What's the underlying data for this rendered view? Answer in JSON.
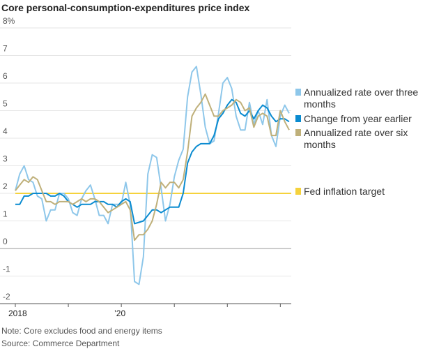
{
  "chart_data": {
    "type": "line",
    "title": "Core personal-consumption-expenditures price index",
    "categories": [
      "2018",
      null,
      null,
      null,
      null,
      null,
      null,
      null,
      null,
      null,
      null,
      null,
      null,
      null,
      null,
      null,
      null,
      null,
      null,
      null,
      null,
      null,
      null,
      null,
      "’20",
      null,
      null,
      null,
      null,
      null,
      null,
      null,
      null,
      null,
      null,
      null,
      null,
      null,
      null,
      null,
      null,
      null,
      null,
      null,
      null,
      null,
      null,
      null,
      null,
      null,
      null,
      null,
      null,
      null,
      null,
      null,
      null,
      null,
      null,
      null,
      null,
      null,
      null
    ],
    "series": [
      {
        "name": "Annualized rate over three months",
        "color": "#8ec7ea",
        "values": [
          2.1,
          2.7,
          3.0,
          2.5,
          2.4,
          1.9,
          1.8,
          1.0,
          1.4,
          1.4,
          2.0,
          2.0,
          1.8,
          1.3,
          1.2,
          1.8,
          2.1,
          2.3,
          1.8,
          1.2,
          1.2,
          0.9,
          1.6,
          1.6,
          1.6,
          2.4,
          1.6,
          -1.2,
          -1.3,
          -0.3,
          2.7,
          3.4,
          3.3,
          2.2,
          1.0,
          1.6,
          2.6,
          3.2,
          3.6,
          5.5,
          6.4,
          6.6,
          5.6,
          4.4,
          3.8,
          3.9,
          4.9,
          6.0,
          6.2,
          5.8,
          4.8,
          4.3,
          4.3,
          5.3,
          4.5,
          5.0,
          4.5,
          5.4,
          4.1,
          3.7,
          4.8,
          5.2,
          4.9
        ]
      },
      {
        "name": "Change from year earlier",
        "color": "#0a8bd0",
        "values": [
          1.6,
          1.6,
          1.9,
          1.9,
          2.0,
          2.0,
          2.0,
          2.0,
          1.9,
          1.9,
          2.0,
          1.9,
          1.7,
          1.6,
          1.5,
          1.6,
          1.6,
          1.6,
          1.7,
          1.7,
          1.7,
          1.6,
          1.6,
          1.5,
          1.7,
          1.8,
          1.7,
          0.9,
          0.95,
          1.0,
          1.2,
          1.4,
          1.4,
          1.3,
          1.4,
          1.5,
          1.5,
          1.5,
          2.0,
          3.1,
          3.5,
          3.7,
          3.8,
          3.8,
          3.8,
          4.1,
          4.7,
          4.9,
          5.2,
          5.4,
          5.3,
          4.9,
          4.8,
          5.0,
          4.7,
          5.0,
          5.2,
          5.1,
          4.8,
          4.6,
          4.7,
          4.7,
          4.6
        ]
      },
      {
        "name": "Annualized rate over six months",
        "color": "#bfb07a",
        "values": [
          2.1,
          2.3,
          2.5,
          2.4,
          2.6,
          2.5,
          2.1,
          1.7,
          1.7,
          1.6,
          1.7,
          1.7,
          1.7,
          1.6,
          1.7,
          1.8,
          1.7,
          1.8,
          1.8,
          1.7,
          1.5,
          1.3,
          1.4,
          1.5,
          1.6,
          1.7,
          1.4,
          0.3,
          0.5,
          0.5,
          0.7,
          1.0,
          1.6,
          2.4,
          2.2,
          2.4,
          2.4,
          2.2,
          2.5,
          3.5,
          4.8,
          5.1,
          5.3,
          5.6,
          5.2,
          4.8,
          4.8,
          5.0,
          5.1,
          5.2,
          5.4,
          5.3,
          5.0,
          5.1,
          4.4,
          4.8,
          4.9,
          4.8,
          4.1,
          4.1,
          5.0,
          4.6,
          4.3
        ]
      }
    ],
    "target": {
      "name": "Fed inflation target",
      "value": 2,
      "color": "#f5d23c"
    },
    "ylim": [
      -2,
      8
    ],
    "yticks": [
      -2,
      -1,
      0,
      1,
      2,
      3,
      4,
      5,
      6,
      7,
      {
        "value": 8,
        "label": "8%"
      }
    ],
    "grid": true,
    "note": "Note: Core excludes food and energy items",
    "source": "Source: Commerce Department"
  }
}
